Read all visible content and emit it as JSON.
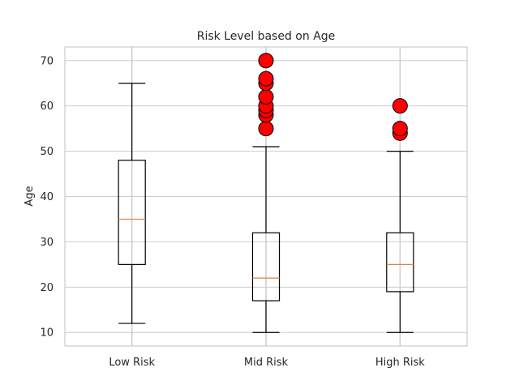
{
  "chart_data": {
    "type": "boxplot",
    "title": "Risk Level based on Age",
    "xlabel": "",
    "ylabel": "Age",
    "categories": [
      "Low Risk",
      "Mid Risk",
      "High Risk"
    ],
    "ylim": [
      7,
      73
    ],
    "yticks": [
      10,
      20,
      30,
      40,
      50,
      60,
      70
    ],
    "grid": true,
    "boxes": [
      {
        "category": "Low Risk",
        "whisker_low": 12,
        "q1": 25,
        "median": 35,
        "q3": 48,
        "whisker_high": 65,
        "outliers": []
      },
      {
        "category": "Mid Risk",
        "whisker_low": 10,
        "q1": 17,
        "median": 22,
        "q3": 32,
        "whisker_high": 51,
        "outliers": [
          55,
          58,
          59,
          60,
          62,
          65,
          66,
          70
        ]
      },
      {
        "category": "High Risk",
        "whisker_low": 10,
        "q1": 19,
        "median": 25,
        "q3": 32,
        "whisker_high": 50,
        "outliers": [
          54,
          55,
          60
        ]
      }
    ],
    "colors": {
      "box": "#000000",
      "median": "#e0824b",
      "outlier_fill": "#ff0000",
      "outlier_edge": "#000000",
      "grid": "#cccccc",
      "spine": "#cccccc"
    }
  }
}
